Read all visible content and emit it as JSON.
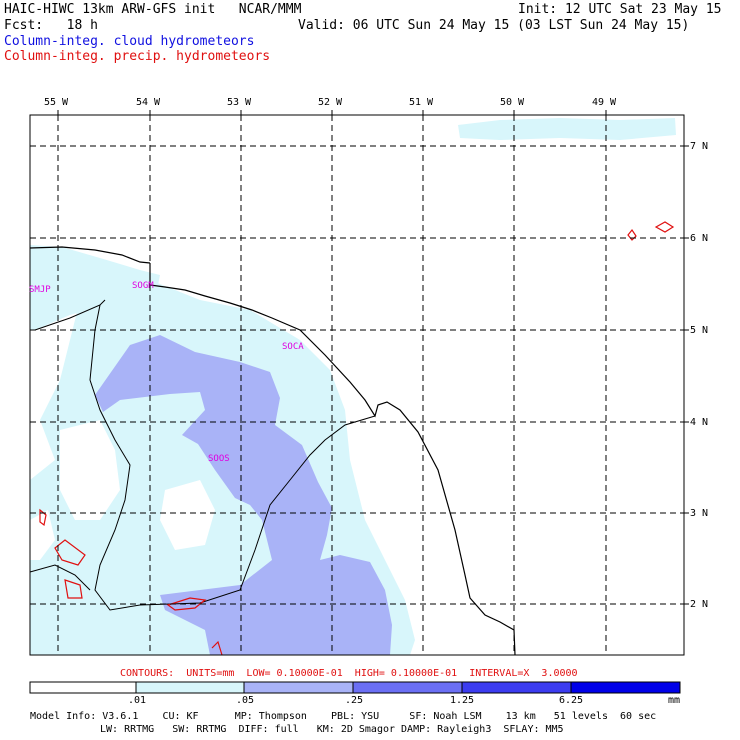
{
  "header": {
    "line1_left": "HAIC-HIWC 13km ARW-GFS init   NCAR/MMM",
    "line1_right": "Init: 12 UTC Sat 23 May 15",
    "line2_left": "Fcst:   18 h",
    "line2_right": "Valid: 06 UTC Sun 24 May 15 (03 LST Sun 24 May 15)",
    "legend_cloud": "Column-integ. cloud hydrometeors",
    "legend_precip": "Column-integ. precip. hydrometeors",
    "legend_cloud_color": "#0000ff",
    "legend_precip_color": "#ff0000"
  },
  "map": {
    "lon_labels": [
      "55 W",
      "54 W",
      "53 W",
      "52 W",
      "51 W",
      "50 W",
      "49 W"
    ],
    "lat_labels": [
      "7 N",
      "6 N",
      "5 N",
      "4 N",
      "3 N",
      "2 N"
    ],
    "stations": [
      "SMJP",
      "SOGM",
      "SOCA",
      "SOOS"
    ],
    "station_color": "#ff00ff",
    "grid": "dashed"
  },
  "contours_line": "CONTOURS:  UNITS=mm  LOW= 0.10000E-01  HIGH= 0.10000E-01  INTERVAL=X  3.0000",
  "colorbar": {
    "colors": [
      "#ffffff",
      "#d8f6fb",
      "#a9b3f7",
      "#6b6ff4",
      "#3c3cf0",
      "#0000e8"
    ],
    "tick_labels": [
      ".01",
      ".05",
      ".25",
      "1.25",
      "6.25"
    ],
    "units": "mm"
  },
  "model_info": {
    "line1": "Model Info: V3.6.1    CU: KF      MP: Thompson    PBL: YSU     SF: Noah LSM    13 km   51 levels  60 sec",
    "line2": "LW: RRTMG   SW: RRTMG  DIFF: full   KM: 2D Smagor DAMP: Rayleigh3  SFLAY: MM5"
  }
}
